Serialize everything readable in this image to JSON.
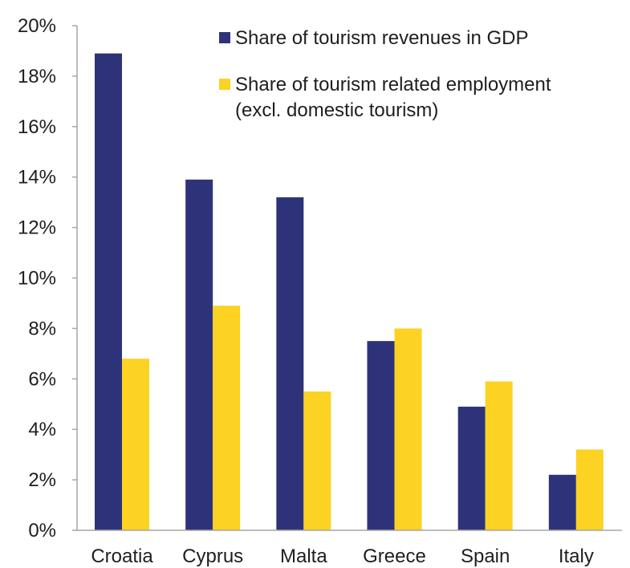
{
  "chart_data": {
    "type": "bar",
    "categories": [
      "Croatia",
      "Cyprus",
      "Malta",
      "Greece",
      "Spain",
      "Italy"
    ],
    "series": [
      {
        "name": "Share of tourism revenues in GDP",
        "color": "#2e3379",
        "values": [
          18.9,
          13.9,
          13.2,
          7.5,
          4.9,
          2.2
        ]
      },
      {
        "name_lines": [
          "Share of tourism related employment",
          "(excl. domestic tourism)"
        ],
        "color": "#fcd223",
        "values": [
          6.8,
          8.9,
          5.5,
          8.0,
          5.9,
          3.2
        ]
      }
    ],
    "ylim": [
      0,
      20
    ],
    "yticks": [
      0,
      2,
      4,
      6,
      8,
      10,
      12,
      14,
      16,
      18,
      20
    ],
    "ytick_labels": [
      "0%",
      "2%",
      "4%",
      "6%",
      "8%",
      "10%",
      "12%",
      "14%",
      "16%",
      "18%",
      "20%"
    ],
    "legend_position": "top-right",
    "grid": false
  }
}
